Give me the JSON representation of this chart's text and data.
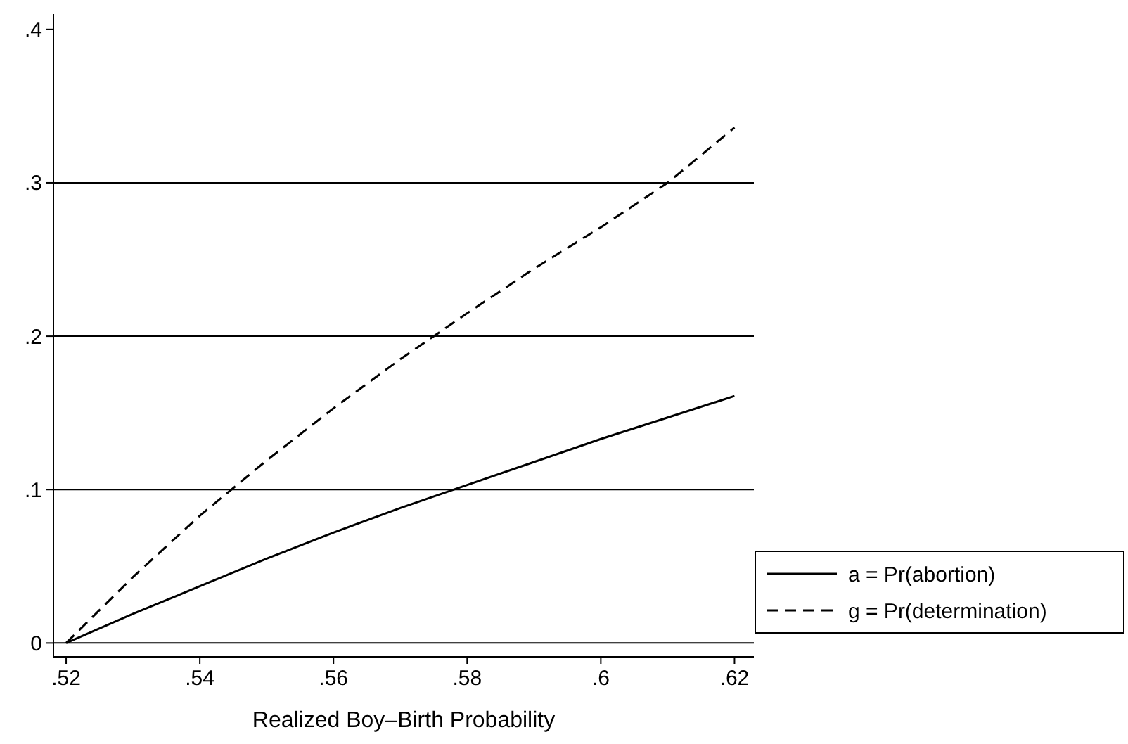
{
  "chart_data": {
    "type": "line",
    "xlabel": "Realized Boy–Birth Probability",
    "x": [
      0.52,
      0.53,
      0.54,
      0.55,
      0.56,
      0.57,
      0.58,
      0.59,
      0.6,
      0.61,
      0.62
    ],
    "series": [
      {
        "name": "a = Pr(abortion)",
        "color": "#000000",
        "line_style": "solid",
        "values": [
          0,
          0.019,
          0.037,
          0.055,
          0.072,
          0.088,
          0.103,
          0.118,
          0.133,
          0.147,
          0.161
        ]
      },
      {
        "name": "g = Pr(determination)",
        "color": "#000000",
        "line_style": "dashed",
        "values": [
          0,
          0.043,
          0.083,
          0.119,
          0.153,
          0.185,
          0.215,
          0.244,
          0.271,
          0.3,
          0.336
        ]
      }
    ],
    "xlim": [
      0.5181,
      0.6229
    ],
    "ylim": [
      -0.009,
      0.41
    ],
    "xticks": [
      {
        "value": 0.52,
        "label": ".52"
      },
      {
        "value": 0.54,
        "label": ".54"
      },
      {
        "value": 0.56,
        "label": ".56"
      },
      {
        "value": 0.58,
        "label": ".58"
      },
      {
        "value": 0.6,
        "label": ".6"
      },
      {
        "value": 0.62,
        "label": ".62"
      }
    ],
    "yticks": [
      0,
      {
        "value": 0.1,
        "label": ".1"
      },
      {
        "value": 0.2,
        "label": ".2"
      },
      {
        "value": 0.3,
        "label": ".3"
      },
      {
        "value": 0.4,
        "label": ".4"
      }
    ],
    "grid": "y",
    "legend": "right"
  }
}
